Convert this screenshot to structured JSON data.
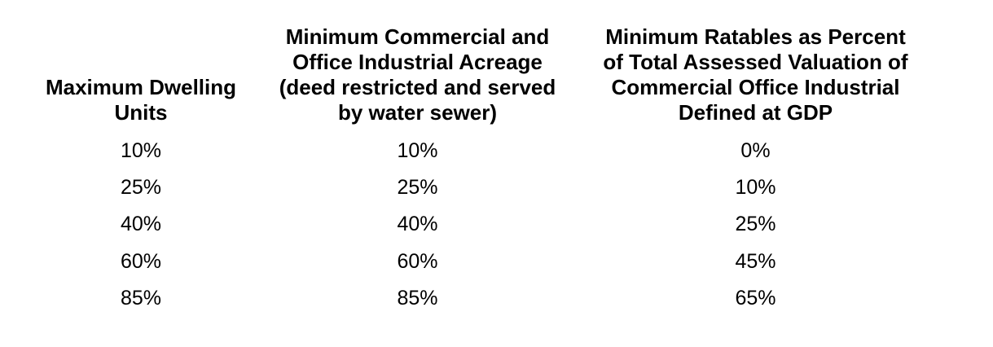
{
  "table": {
    "columns": [
      {
        "header_lines": [
          "Maximum Dwelling",
          "Units"
        ],
        "values": [
          "10%",
          "25%",
          "40%",
          "60%",
          "85%"
        ]
      },
      {
        "header_lines": [
          "Minimum Commercial and",
          "Office Industrial Acreage",
          "(deed restricted and served",
          "by water sewer)"
        ],
        "values": [
          "10%",
          "25%",
          "40%",
          "60%",
          "85%"
        ]
      },
      {
        "header_lines": [
          "Minimum Ratables as Percent",
          "of Total Assessed Valuation of",
          "Commercial Office Industrial",
          "Defined at GDP"
        ],
        "values": [
          "0%",
          "10%",
          "25%",
          "45%",
          "65%"
        ]
      }
    ]
  }
}
